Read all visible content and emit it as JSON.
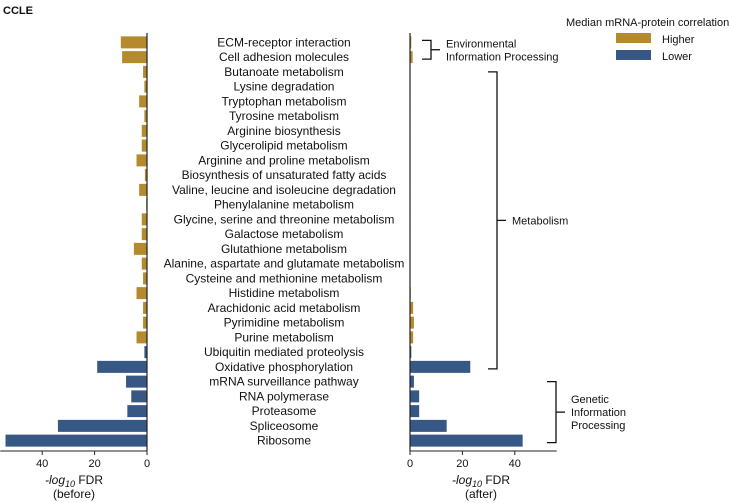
{
  "figure": {
    "panel_title": "CCLE",
    "legend_title": "Median mRNA-protein correlation",
    "legend_items": [
      {
        "label": "Higher",
        "color": "#b48a2c"
      },
      {
        "label": "Lower",
        "color": "#375784"
      }
    ],
    "groups": [
      {
        "label_lines": [
          "Environmental",
          "Information Processing"
        ],
        "from": "ECM-receptor interaction",
        "to": "Cell adhesion molecules"
      },
      {
        "label_lines": [
          "Metabolism"
        ],
        "from": "Butanoate metabolism",
        "to": "Oxidative phosphorylation"
      },
      {
        "label_lines": [
          "Genetic",
          "Information",
          "Processing"
        ],
        "from": "mRNA surveillance pathway",
        "to": "Ribosome"
      }
    ]
  },
  "chart_data": {
    "type": "bar",
    "orientation": "horizontal",
    "categories": [
      "ECM-receptor interaction",
      "Cell adhesion molecules",
      "Butanoate metabolism",
      "Lysine degradation",
      "Tryptophan metabolism",
      "Tyrosine metabolism",
      "Arginine biosynthesis",
      "Glycerolipid metabolism",
      "Arginine and proline metabolism",
      "Biosynthesis of unsaturated fatty acids",
      "Valine, leucine and isoleucine degradation",
      "Phenylalanine metabolism",
      "Glycine, serine and threonine metabolism",
      "Galactose metabolism",
      "Glutathione metabolism",
      "Alanine, aspartate and glutamate metabolism",
      "Cysteine and methionine metabolism",
      "Histidine metabolism",
      "Arachidonic acid metabolism",
      "Pyrimidine metabolism",
      "Purine metabolism",
      "Ubiquitin mediated proteolysis",
      "Oxidative phosphorylation",
      "mRNA surveillance pathway",
      "RNA polymerase",
      "Proteasome",
      "Spliceosome",
      "Ribosome"
    ],
    "correlation": [
      "Higher",
      "Higher",
      "Higher",
      "Higher",
      "Higher",
      "Higher",
      "Higher",
      "Higher",
      "Higher",
      "Higher",
      "Higher",
      "Higher",
      "Higher",
      "Higher",
      "Higher",
      "Higher",
      "Higher",
      "Higher",
      "Higher",
      "Higher",
      "Higher",
      "Lower",
      "Lower",
      "Lower",
      "Lower",
      "Lower",
      "Lower",
      "Lower"
    ],
    "series": [
      {
        "name": "before",
        "xlabel": "-log10 FDR",
        "xlabel_sub": "(before)",
        "xlim": [
          0,
          56
        ],
        "xticks": [
          40,
          20,
          0
        ],
        "direction": "left",
        "values": [
          10,
          9.5,
          1.5,
          1,
          3,
          1,
          2,
          2,
          4,
          0.8,
          3,
          0.3,
          2,
          2,
          5,
          2,
          1.5,
          4,
          1.5,
          1.5,
          4,
          1,
          19,
          8,
          6,
          7.5,
          34,
          54
        ]
      },
      {
        "name": "after",
        "xlabel": "-log10 FDR",
        "xlabel_sub": "(after)",
        "xlim": [
          0,
          56
        ],
        "xticks": [
          0,
          20,
          40
        ],
        "direction": "right",
        "values": [
          0.5,
          1,
          0.2,
          0.2,
          0.2,
          0.2,
          0.2,
          0.2,
          0.2,
          0.2,
          0.2,
          0.2,
          0.2,
          0.2,
          0.2,
          0.2,
          0.2,
          0.3,
          1.2,
          1.5,
          1.2,
          0.5,
          23,
          1.5,
          3.5,
          3.5,
          14,
          43
        ]
      }
    ]
  }
}
